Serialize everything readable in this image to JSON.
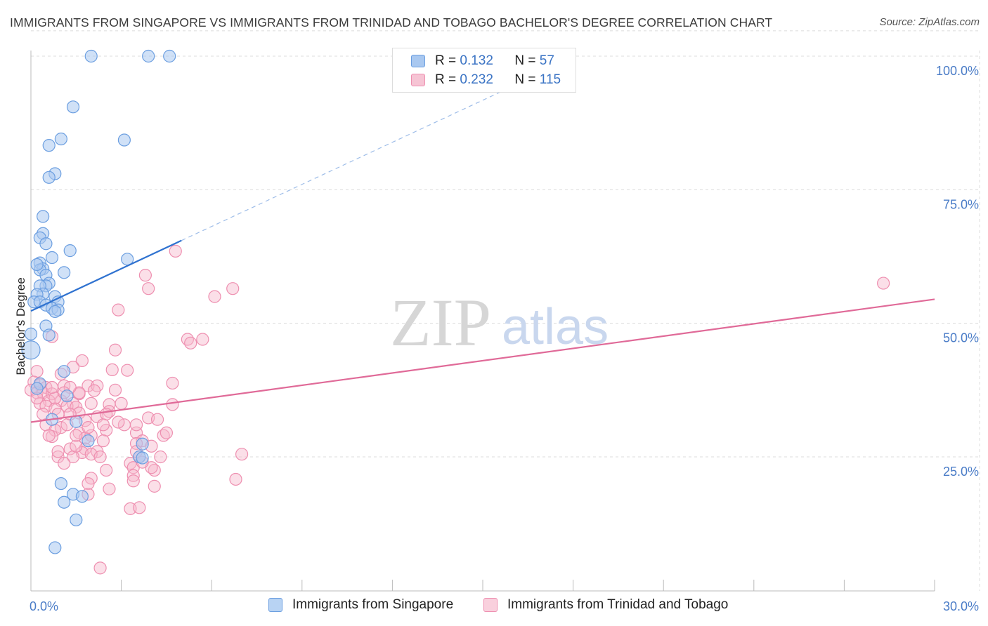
{
  "title": "IMMIGRANTS FROM SINGAPORE VS IMMIGRANTS FROM TRINIDAD AND TOBAGO BACHELOR'S DEGREE CORRELATION CHART",
  "source": "Source: ZipAtlas.com",
  "watermark": {
    "zip": "ZIP",
    "atlas": "atlas"
  },
  "colors": {
    "blue_fill": "#a9c8f0",
    "blue_stroke": "#6b9ee0",
    "blue_line": "#2f72d0",
    "pink_fill": "#f6b8cb",
    "pink_stroke": "#ee8fb0",
    "pink_line": "#e06a98",
    "tick_text": "#4a7cc7",
    "grid": "#dcdcdc"
  },
  "legend": {
    "rows": [
      {
        "r_label": "R =",
        "r_value": "0.132",
        "n_label": "N =",
        "n_value": "57"
      },
      {
        "r_label": "R =",
        "r_value": "0.232",
        "n_label": "N =",
        "n_value": "115"
      }
    ]
  },
  "bottom_legend": {
    "singapore": "Immigrants from Singapore",
    "trinidad": "Immigrants from Trinidad and Tobago"
  },
  "chart_data": {
    "type": "scatter",
    "title": "IMMIGRANTS FROM SINGAPORE VS IMMIGRANTS FROM TRINIDAD AND TOBAGO BACHELOR'S DEGREE CORRELATION CHART",
    "xlabel": "",
    "ylabel": "Bachelor's Degree",
    "xlim": [
      0,
      30
    ],
    "ylim": [
      0,
      105
    ],
    "x_tick_labels": [
      "0.0%",
      "30.0%"
    ],
    "y_ticks": [
      25,
      50,
      75,
      100
    ],
    "y_tick_labels": [
      "25.0%",
      "50.0%",
      "75.0%",
      "100.0%"
    ],
    "grid": true,
    "legend_position": "top-center",
    "series": [
      {
        "name": "Immigrants from Singapore",
        "r": 0.132,
        "n": 57,
        "trend": {
          "x0": 0,
          "y0": 52.3,
          "x1": 5.0,
          "y1": 65.5,
          "dashed_to_x": 17.0,
          "dashed_to_y": 97.0
        },
        "points": [
          [
            2.0,
            100
          ],
          [
            3.9,
            100
          ],
          [
            4.6,
            100
          ],
          [
            1.4,
            90.5
          ],
          [
            1.0,
            84.5
          ],
          [
            3.1,
            84.3
          ],
          [
            0.6,
            83.3
          ],
          [
            0.8,
            78
          ],
          [
            0.6,
            77.3
          ],
          [
            0.4,
            70
          ],
          [
            0.4,
            66.8
          ],
          [
            0.3,
            66
          ],
          [
            0.5,
            64.9
          ],
          [
            1.3,
            63.6
          ],
          [
            3.2,
            62
          ],
          [
            0.3,
            61.3
          ],
          [
            0.7,
            62.3
          ],
          [
            0.4,
            60.2
          ],
          [
            0.3,
            60
          ],
          [
            0.2,
            61
          ],
          [
            1.1,
            59.5
          ],
          [
            0.5,
            59
          ],
          [
            0.6,
            57.5
          ],
          [
            0.5,
            57
          ],
          [
            0.3,
            57
          ],
          [
            0.4,
            55.5
          ],
          [
            0.2,
            55.4
          ],
          [
            0.8,
            55
          ],
          [
            0.1,
            54
          ],
          [
            0.3,
            54
          ],
          [
            0.9,
            54
          ],
          [
            0.5,
            53.4
          ],
          [
            0.7,
            52.8
          ],
          [
            0.9,
            52.5
          ],
          [
            0.8,
            52.2
          ],
          [
            0.5,
            49.5
          ],
          [
            0.0,
            48
          ],
          [
            0.6,
            47.8
          ],
          [
            0.0,
            45
          ],
          [
            1.1,
            41
          ],
          [
            0.3,
            38.7
          ],
          [
            0.2,
            37.8
          ],
          [
            1.2,
            36.4
          ],
          [
            0.7,
            32
          ],
          [
            1.5,
            31.6
          ],
          [
            1.9,
            28
          ],
          [
            3.7,
            27.4
          ],
          [
            3.6,
            25
          ],
          [
            3.7,
            24.8
          ],
          [
            1.0,
            20
          ],
          [
            1.1,
            16.5
          ],
          [
            1.4,
            18
          ],
          [
            1.7,
            17.6
          ],
          [
            1.5,
            13.2
          ],
          [
            0.8,
            8
          ]
        ]
      },
      {
        "name": "Immigrants from Trinidad and Tobago",
        "r": 0.232,
        "n": 115,
        "trend": {
          "x0": 0,
          "y0": 31.5,
          "x1": 30,
          "y1": 54.5
        },
        "points": [
          [
            4.8,
            63.5
          ],
          [
            3.8,
            59
          ],
          [
            3.9,
            56.5
          ],
          [
            6.7,
            56.5
          ],
          [
            6.1,
            55
          ],
          [
            2.9,
            52.5
          ],
          [
            28.3,
            57.5
          ],
          [
            5.2,
            47
          ],
          [
            5.3,
            46.3
          ],
          [
            5.7,
            47
          ],
          [
            0.7,
            47.5
          ],
          [
            2.8,
            45
          ],
          [
            1.7,
            43
          ],
          [
            1.4,
            41.8
          ],
          [
            2.7,
            41.3
          ],
          [
            3.2,
            41.2
          ],
          [
            0.2,
            41
          ],
          [
            1.0,
            40.5
          ],
          [
            4.7,
            38.8
          ],
          [
            0.1,
            39
          ],
          [
            0.3,
            38.5
          ],
          [
            1.9,
            38.3
          ],
          [
            0.5,
            38
          ],
          [
            1.1,
            38.3
          ],
          [
            2.2,
            38.3
          ],
          [
            0.0,
            37.5
          ],
          [
            0.2,
            37
          ],
          [
            0.4,
            37
          ],
          [
            0.7,
            36.8
          ],
          [
            1.6,
            36.8
          ],
          [
            2.1,
            37.4
          ],
          [
            2.8,
            37.5
          ],
          [
            0.6,
            35.5
          ],
          [
            1.0,
            35.5
          ],
          [
            1.4,
            35
          ],
          [
            0.3,
            35
          ],
          [
            0.5,
            34.5
          ],
          [
            0.8,
            34
          ],
          [
            1.2,
            34.5
          ],
          [
            1.5,
            34.3
          ],
          [
            2.6,
            34.8
          ],
          [
            4.7,
            34.8
          ],
          [
            2.6,
            33.5
          ],
          [
            1.6,
            33.2
          ],
          [
            0.9,
            33
          ],
          [
            0.4,
            33
          ],
          [
            2.2,
            32.5
          ],
          [
            3.9,
            32.3
          ],
          [
            1.8,
            31.8
          ],
          [
            3.1,
            31
          ],
          [
            0.5,
            31
          ],
          [
            1.0,
            30.5
          ],
          [
            2.5,
            30
          ],
          [
            0.8,
            30
          ],
          [
            1.6,
            29.5
          ],
          [
            3.5,
            29.5
          ],
          [
            2.0,
            29
          ],
          [
            1.8,
            28.5
          ],
          [
            0.7,
            28.8
          ],
          [
            3.7,
            28
          ],
          [
            4.4,
            29
          ],
          [
            3.5,
            27.5
          ],
          [
            4.0,
            27
          ],
          [
            2.4,
            28
          ],
          [
            1.3,
            26.5
          ],
          [
            1.8,
            26.5
          ],
          [
            2.2,
            26
          ],
          [
            1.7,
            25.8
          ],
          [
            2.0,
            25.5
          ],
          [
            3.6,
            25
          ],
          [
            4.3,
            25
          ],
          [
            7.0,
            25.5
          ],
          [
            1.4,
            25
          ],
          [
            0.9,
            25
          ],
          [
            1.1,
            23.8
          ],
          [
            3.3,
            23.8
          ],
          [
            3.4,
            23
          ],
          [
            4.1,
            22.5
          ],
          [
            2.5,
            22.5
          ],
          [
            3.4,
            21.5
          ],
          [
            2.0,
            21
          ],
          [
            3.4,
            20.5
          ],
          [
            1.9,
            20
          ],
          [
            4.1,
            19.5
          ],
          [
            2.6,
            19
          ],
          [
            6.8,
            20.8
          ],
          [
            1.9,
            18
          ],
          [
            3.3,
            15.3
          ],
          [
            3.6,
            15.5
          ],
          [
            2.3,
            4.2
          ],
          [
            1.6,
            37
          ],
          [
            1.3,
            38
          ],
          [
            3.0,
            35
          ],
          [
            2.9,
            31.5
          ],
          [
            3.5,
            31
          ],
          [
            2.5,
            33
          ],
          [
            0.2,
            36
          ],
          [
            0.8,
            36
          ],
          [
            1.2,
            31
          ],
          [
            1.9,
            30.5
          ],
          [
            4.5,
            29.5
          ],
          [
            1.5,
            27
          ],
          [
            2.3,
            25
          ],
          [
            3.5,
            26
          ],
          [
            4.0,
            23
          ],
          [
            0.6,
            29
          ],
          [
            0.9,
            26
          ],
          [
            1.1,
            37
          ],
          [
            1.3,
            33
          ],
          [
            1.5,
            29
          ],
          [
            2.0,
            35
          ],
          [
            2.4,
            31
          ],
          [
            0.7,
            38
          ],
          [
            4.2,
            32
          ],
          [
            3.7,
            24
          ]
        ]
      }
    ]
  }
}
